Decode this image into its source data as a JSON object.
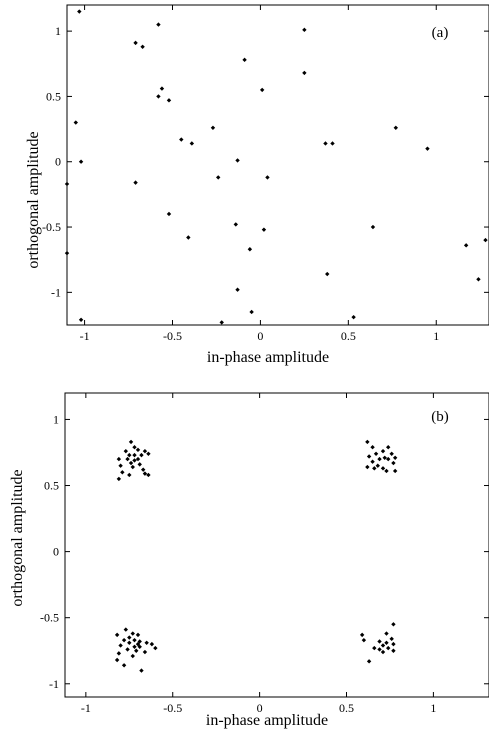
{
  "chart_data": [
    {
      "type": "scatter",
      "panel_label": "(a)",
      "xlabel": "in-phase amplitude",
      "ylabel": "orthogonal amplitude",
      "xlim": [
        -1.1,
        1.3
      ],
      "ylim": [
        -1.25,
        1.2
      ],
      "xticks": [
        -1,
        -0.5,
        0,
        0.5,
        1
      ],
      "yticks": [
        -1,
        -0.5,
        0,
        0.5,
        1
      ],
      "xtick_labels": [
        "-1",
        "-0.5",
        "0",
        "0.5",
        "1"
      ],
      "ytick_labels": [
        "-1",
        "-0.5",
        "0",
        "0.5",
        "1"
      ],
      "grid": false,
      "marker_color": "#000000",
      "points": [
        [
          -1.03,
          1.15
        ],
        [
          -0.58,
          1.05
        ],
        [
          -0.71,
          0.91
        ],
        [
          -0.67,
          0.88
        ],
        [
          0.25,
          1.01
        ],
        [
          -0.09,
          0.78
        ],
        [
          0.25,
          0.68
        ],
        [
          -0.56,
          0.56
        ],
        [
          -0.58,
          0.5
        ],
        [
          -0.52,
          0.47
        ],
        [
          0.01,
          0.55
        ],
        [
          -1.05,
          0.3
        ],
        [
          -0.27,
          0.26
        ],
        [
          0.77,
          0.26
        ],
        [
          -0.45,
          0.17
        ],
        [
          -0.39,
          0.14
        ],
        [
          0.37,
          0.14
        ],
        [
          0.41,
          0.14
        ],
        [
          0.95,
          0.1
        ],
        [
          -1.02,
          0.0
        ],
        [
          -0.13,
          0.01
        ],
        [
          -1.1,
          -0.17
        ],
        [
          -0.71,
          -0.16
        ],
        [
          -0.24,
          -0.12
        ],
        [
          0.04,
          -0.12
        ],
        [
          -0.52,
          -0.4
        ],
        [
          -0.14,
          -0.48
        ],
        [
          0.02,
          -0.52
        ],
        [
          0.64,
          -0.5
        ],
        [
          -0.41,
          -0.58
        ],
        [
          -0.06,
          -0.67
        ],
        [
          1.17,
          -0.64
        ],
        [
          1.28,
          -0.6
        ],
        [
          -1.1,
          -0.7
        ],
        [
          0.38,
          -0.86
        ],
        [
          1.24,
          -0.9
        ],
        [
          -0.13,
          -0.98
        ],
        [
          -0.05,
          -1.15
        ],
        [
          0.53,
          -1.19
        ],
        [
          -1.02,
          -1.21
        ],
        [
          -0.22,
          -1.23
        ]
      ]
    },
    {
      "type": "scatter",
      "panel_label": "(b)",
      "xlabel": "in-phase amplitude",
      "ylabel": "orthogonal amplitude",
      "xlim": [
        -1.12,
        1.32
      ],
      "ylim": [
        -1.1,
        1.2
      ],
      "xticks": [
        -1,
        -0.5,
        0,
        0.5,
        1
      ],
      "yticks": [
        -1,
        -0.5,
        0,
        0.5,
        1
      ],
      "xtick_labels": [
        "-1",
        "-0.5",
        "0",
        "0.5",
        "1"
      ],
      "ytick_labels": [
        "-1",
        "-0.5",
        "0",
        "0.5",
        "1"
      ],
      "grid": false,
      "marker_color": "#000000",
      "points": [
        [
          -0.74,
          0.83
        ],
        [
          -0.72,
          0.79
        ],
        [
          -0.77,
          0.76
        ],
        [
          -0.7,
          0.77
        ],
        [
          -0.66,
          0.76
        ],
        [
          -0.75,
          0.73
        ],
        [
          -0.72,
          0.73
        ],
        [
          -0.68,
          0.73
        ],
        [
          -0.64,
          0.74
        ],
        [
          -0.81,
          0.7
        ],
        [
          -0.76,
          0.7
        ],
        [
          -0.72,
          0.69
        ],
        [
          -0.7,
          0.7
        ],
        [
          -0.74,
          0.67
        ],
        [
          -0.69,
          0.66
        ],
        [
          -0.8,
          0.65
        ],
        [
          -0.73,
          0.64
        ],
        [
          -0.67,
          0.62
        ],
        [
          -0.79,
          0.6
        ],
        [
          -0.75,
          0.58
        ],
        [
          -0.66,
          0.59
        ],
        [
          -0.64,
          0.58
        ],
        [
          -0.81,
          0.55
        ],
        [
          0.62,
          0.83
        ],
        [
          0.65,
          0.79
        ],
        [
          0.74,
          0.79
        ],
        [
          0.71,
          0.76
        ],
        [
          0.67,
          0.74
        ],
        [
          0.76,
          0.74
        ],
        [
          0.63,
          0.72
        ],
        [
          0.72,
          0.71
        ],
        [
          0.78,
          0.71
        ],
        [
          0.69,
          0.7
        ],
        [
          0.74,
          0.7
        ],
        [
          0.65,
          0.68
        ],
        [
          0.77,
          0.67
        ],
        [
          0.62,
          0.64
        ],
        [
          0.68,
          0.65
        ],
        [
          0.71,
          0.63
        ],
        [
          0.66,
          0.63
        ],
        [
          0.73,
          0.61
        ],
        [
          0.78,
          0.61
        ],
        [
          -0.77,
          -0.59
        ],
        [
          -0.73,
          -0.62
        ],
        [
          -0.82,
          -0.63
        ],
        [
          -0.7,
          -0.63
        ],
        [
          -0.75,
          -0.65
        ],
        [
          -0.78,
          -0.67
        ],
        [
          -0.72,
          -0.67
        ],
        [
          -0.69,
          -0.68
        ],
        [
          -0.75,
          -0.69
        ],
        [
          -0.7,
          -0.7
        ],
        [
          -0.65,
          -0.69
        ],
        [
          -0.62,
          -0.7
        ],
        [
          -0.8,
          -0.71
        ],
        [
          -0.72,
          -0.72
        ],
        [
          -0.69,
          -0.72
        ],
        [
          -0.6,
          -0.73
        ],
        [
          -0.76,
          -0.74
        ],
        [
          -0.71,
          -0.75
        ],
        [
          -0.66,
          -0.76
        ],
        [
          -0.81,
          -0.77
        ],
        [
          -0.73,
          -0.79
        ],
        [
          -0.82,
          -0.82
        ],
        [
          -0.78,
          -0.86
        ],
        [
          -0.68,
          -0.9
        ],
        [
          0.77,
          -0.55
        ],
        [
          0.59,
          -0.63
        ],
        [
          0.73,
          -0.62
        ],
        [
          0.76,
          -0.66
        ],
        [
          0.6,
          -0.67
        ],
        [
          0.69,
          -0.68
        ],
        [
          0.73,
          -0.69
        ],
        [
          0.77,
          -0.7
        ],
        [
          0.71,
          -0.71
        ],
        [
          0.66,
          -0.73
        ],
        [
          0.74,
          -0.73
        ],
        [
          0.69,
          -0.74
        ],
        [
          0.71,
          -0.76
        ],
        [
          0.77,
          -0.75
        ],
        [
          0.63,
          -0.83
        ]
      ]
    }
  ]
}
